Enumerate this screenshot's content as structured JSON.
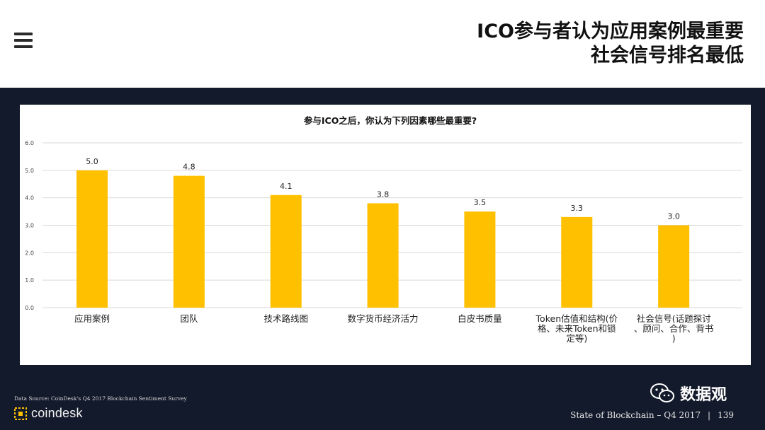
{
  "header": {
    "title_line1": "ICO参与者认为应用案例最重要",
    "title_line2": "社会信号排名最低"
  },
  "chart_data": {
    "type": "bar",
    "title": "参与ICO之后，你认为下列因素哪些最重要?",
    "categories": [
      "应用案例",
      "团队",
      "技术路线图",
      "数字货币经济活力",
      "白皮书质量",
      "Token估值和结构(价\n格、未来Token和锁\n定等)",
      "社会信号(话题探讨\n、顾问、合作、背书\n)"
    ],
    "values": [
      5.0,
      4.8,
      4.1,
      3.8,
      3.5,
      3.3,
      3.0
    ],
    "value_labels": [
      "5.0",
      "4.8",
      "4.1",
      "3.8",
      "3.5",
      "3.3",
      "3.0"
    ],
    "ylim": [
      0,
      6
    ],
    "yticks": [
      "0.0",
      "1.0",
      "2.0",
      "3.0",
      "4.0",
      "5.0",
      "6.0"
    ],
    "grid": true,
    "bar_color": "#ffc000"
  },
  "footer": {
    "source": "Data Source: CoinDesk's Q4 2017 Blockchain Sentiment Survey",
    "logo_text": "coindesk",
    "report": "State of Blockchain – Q4 2017",
    "separator": "|",
    "page": "139",
    "badge_text": "数据观"
  },
  "colors": {
    "dark_band": "#131a2b",
    "accent": "#ffc000"
  }
}
